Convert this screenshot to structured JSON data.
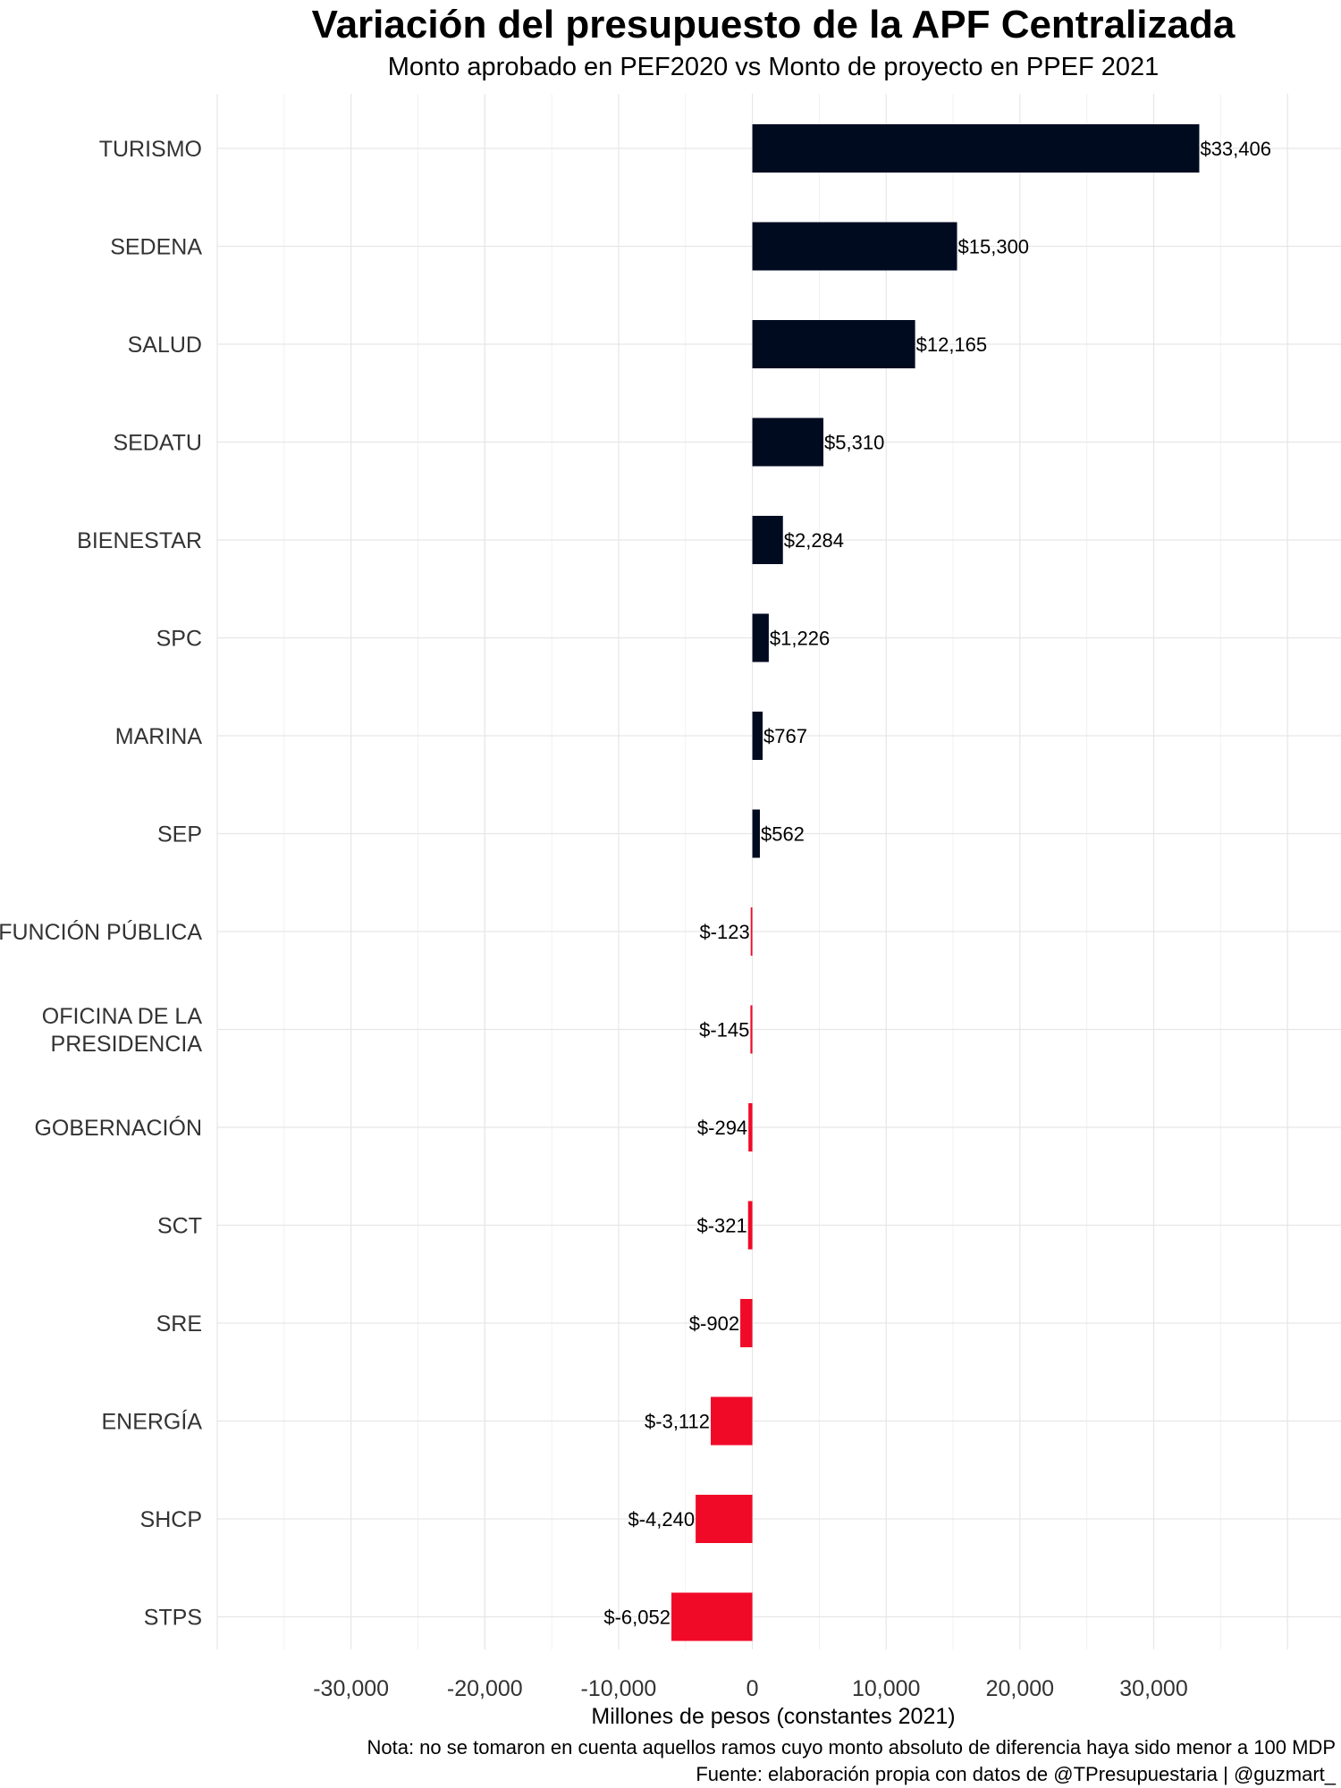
{
  "chart_data": {
    "type": "bar",
    "orientation": "horizontal",
    "title": "Variación del presupuesto de la APF Centralizada",
    "subtitle": "Monto aprobado en PEF2020 vs Monto de proyecto en PPEF 2021",
    "xlabel": "Millones de pesos (constantes 2021)",
    "ylabel": "",
    "xlim": [
      -40000,
      44000
    ],
    "xticks": [
      -30000,
      -20000,
      -10000,
      0,
      10000,
      20000,
      30000
    ],
    "xtick_labels": [
      "-30,000",
      "-20,000",
      "-10,000",
      "0",
      "10,000",
      "20,000",
      "30,000"
    ],
    "grid": true,
    "legend": "none",
    "categories": [
      "TURISMO",
      "SEDENA",
      "SALUD",
      "SEDATU",
      "BIENESTAR",
      "SPC",
      "MARINA",
      "SEP",
      "FUNCIÓN PÚBLICA",
      "OFICINA DE LA PRESIDENCIA",
      "GOBERNACIÓN",
      "SCT",
      "SRE",
      "ENERGÍA",
      "SHCP",
      "STPS"
    ],
    "category_lines": [
      [
        "TURISMO"
      ],
      [
        "SEDENA"
      ],
      [
        "SALUD"
      ],
      [
        "SEDATU"
      ],
      [
        "BIENESTAR"
      ],
      [
        "SPC"
      ],
      [
        "MARINA"
      ],
      [
        "SEP"
      ],
      [
        "FUNCIÓN PÚBLICA"
      ],
      [
        "OFICINA DE LA",
        "PRESIDENCIA"
      ],
      [
        "GOBERNACIÓN"
      ],
      [
        "SCT"
      ],
      [
        "SRE"
      ],
      [
        "ENERGÍA"
      ],
      [
        "SHCP"
      ],
      [
        "STPS"
      ]
    ],
    "values": [
      33406,
      15300,
      12165,
      5310,
      2284,
      1226,
      767,
      562,
      -123,
      -145,
      -294,
      -321,
      -902,
      -3112,
      -4240,
      -6052
    ],
    "value_labels": [
      "$33,406",
      "$15,300",
      "$12,165",
      "$5,310",
      "$2,284",
      "$1,226",
      "$767",
      "$562",
      "$-123",
      "$-145",
      "$-294",
      "$-321",
      "$-902",
      "$-3,112",
      "$-4,240",
      "$-6,052"
    ],
    "colors": {
      "positive": "#000b20",
      "negative": "#f00a28"
    }
  },
  "notes": {
    "nota": "Nota: no se tomaron en cuenta aquellos ramos cuyo monto absoluto de diferencia haya sido menor a 100 MDP",
    "fuente": "Fuente: elaboración propia con datos de @TPresupuestaria | @guzmart_"
  }
}
